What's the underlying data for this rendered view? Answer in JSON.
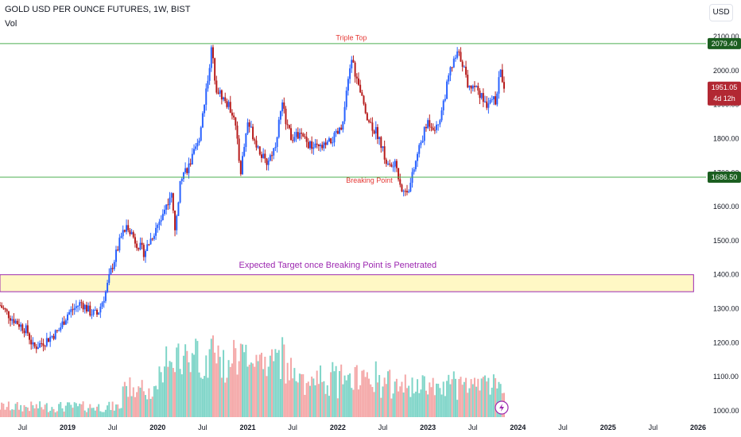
{
  "header": {
    "symbol_title": "GOLD USD PER OUNCE FUTURES, 1W, BIST",
    "indicator": "Vol",
    "currency_button": "USD"
  },
  "price_tags": {
    "resistance": "2079.40",
    "current": "1951.05",
    "countdown": "4d 12h",
    "support": "1686.50"
  },
  "colors": {
    "up": "#2962ff",
    "down": "#b71c1c",
    "vol_up": "#7fd5c8",
    "vol_down": "#f4a7a7",
    "level_line": "#4caf50",
    "level_tag": "#1b5e20",
    "current_tag": "#b22833",
    "annotation_red": "#e53935",
    "annotation_purple": "#9c27b0",
    "target_fill": "#fff8c5"
  },
  "chart_data": {
    "type": "candlestick",
    "yaxis_ticks": [
      "2100.00",
      "2000.00",
      "1900.00",
      "1800.00",
      "1700.00",
      "1600.00",
      "1500.00",
      "1400.00",
      "1300.00",
      "1200.00",
      "1100.00",
      "1000.00"
    ],
    "xaxis_ticks": [
      {
        "label": "Jul",
        "t": 2018.5
      },
      {
        "label": "2019",
        "t": 2019.0
      },
      {
        "label": "Jul",
        "t": 2019.5
      },
      {
        "label": "2020",
        "t": 2020.0
      },
      {
        "label": "Jul",
        "t": 2020.5
      },
      {
        "label": "2021",
        "t": 2021.0
      },
      {
        "label": "Jul",
        "t": 2021.5
      },
      {
        "label": "2022",
        "t": 2022.0
      },
      {
        "label": "Jul",
        "t": 2022.5
      },
      {
        "label": "2023",
        "t": 2023.0
      },
      {
        "label": "Jul",
        "t": 2023.5
      },
      {
        "label": "2024",
        "t": 2024.0
      },
      {
        "label": "Jul",
        "t": 2024.5
      },
      {
        "label": "2025",
        "t": 2025.0
      },
      {
        "label": "Jul",
        "t": 2025.5
      },
      {
        "label": "2026",
        "t": 2026.0
      }
    ],
    "ylim": [
      980,
      2130
    ],
    "price_path": [
      [
        2018.25,
        1310
      ],
      [
        2018.37,
        1275
      ],
      [
        2018.55,
        1235
      ],
      [
        2018.62,
        1185
      ],
      [
        2018.75,
        1205
      ],
      [
        2018.9,
        1235
      ],
      [
        2019.0,
        1285
      ],
      [
        2019.15,
        1318
      ],
      [
        2019.25,
        1290
      ],
      [
        2019.33,
        1283
      ],
      [
        2019.42,
        1345
      ],
      [
        2019.48,
        1410
      ],
      [
        2019.6,
        1515
      ],
      [
        2019.67,
        1545
      ],
      [
        2019.75,
        1500
      ],
      [
        2019.85,
        1465
      ],
      [
        2019.95,
        1520
      ],
      [
        2020.05,
        1575
      ],
      [
        2020.15,
        1640
      ],
      [
        2020.2,
        1520
      ],
      [
        2020.25,
        1690
      ],
      [
        2020.35,
        1720
      ],
      [
        2020.45,
        1785
      ],
      [
        2020.55,
        1965
      ],
      [
        2020.6,
        2065
      ],
      [
        2020.65,
        1950
      ],
      [
        2020.75,
        1910
      ],
      [
        2020.85,
        1870
      ],
      [
        2020.92,
        1700
      ],
      [
        2021.0,
        1850
      ],
      [
        2021.1,
        1785
      ],
      [
        2021.2,
        1725
      ],
      [
        2021.3,
        1775
      ],
      [
        2021.38,
        1900
      ],
      [
        2021.48,
        1800
      ],
      [
        2021.58,
        1810
      ],
      [
        2021.68,
        1780
      ],
      [
        2021.78,
        1770
      ],
      [
        2021.88,
        1780
      ],
      [
        2021.95,
        1800
      ],
      [
        2022.05,
        1830
      ],
      [
        2022.15,
        2040
      ],
      [
        2022.25,
        1930
      ],
      [
        2022.35,
        1850
      ],
      [
        2022.45,
        1810
      ],
      [
        2022.55,
        1720
      ],
      [
        2022.65,
        1720
      ],
      [
        2022.72,
        1640
      ],
      [
        2022.8,
        1660
      ],
      [
        2022.9,
        1770
      ],
      [
        2023.0,
        1850
      ],
      [
        2023.1,
        1830
      ],
      [
        2023.15,
        1880
      ],
      [
        2023.25,
        2000
      ],
      [
        2023.33,
        2050
      ],
      [
        2023.38,
        2030
      ],
      [
        2023.45,
        1950
      ],
      [
        2023.5,
        1960
      ],
      [
        2023.55,
        1950
      ],
      [
        2023.6,
        1920
      ],
      [
        2023.65,
        1900
      ],
      [
        2023.7,
        1930
      ],
      [
        2023.75,
        1900
      ],
      [
        2023.8,
        2000
      ],
      [
        2023.85,
        1951
      ]
    ],
    "levels": [
      {
        "name": "resistance",
        "value": 2079.4
      },
      {
        "name": "support",
        "value": 1686.5
      }
    ],
    "target_zone": {
      "low": 1350,
      "high": 1400,
      "t_start": 2018.25,
      "t_end": 2025.95
    },
    "annotations": [
      {
        "text": "Triple Top",
        "t": 2022.15,
        "y": 2090,
        "color": "#e53935"
      },
      {
        "text": "Breaking Point",
        "t": 2022.35,
        "y": 1670,
        "color": "#e53935"
      },
      {
        "text": "Expected Target once Breaking Point is Penetrated",
        "t": 2022.0,
        "y": 1420,
        "color": "#9c27b0"
      }
    ],
    "last_price": 1951.05,
    "grid": false,
    "legend": "none"
  }
}
